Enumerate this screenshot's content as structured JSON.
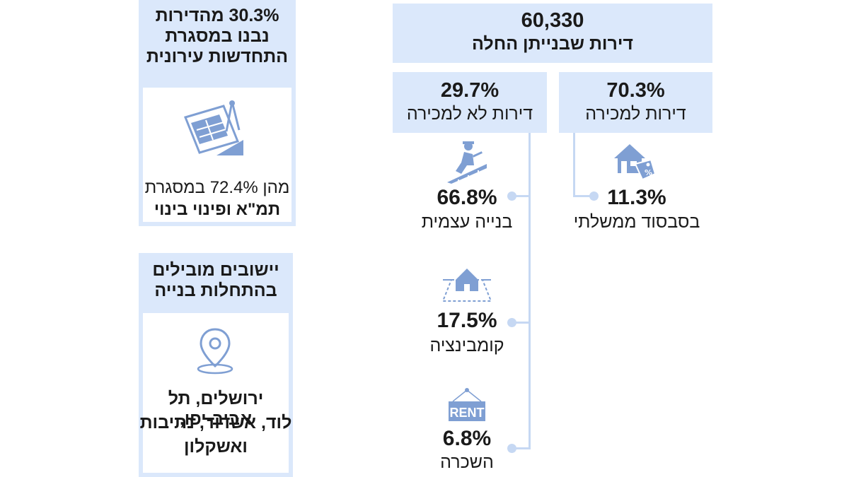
{
  "total": {
    "value": "60,330",
    "label": "דירות שבנייתן החלה"
  },
  "for_sale": {
    "pct": "70.3%",
    "label": "דירות למכירה"
  },
  "not_for_sale": {
    "pct": "29.7%",
    "label": "דירות לא למכירה"
  },
  "subsidized": {
    "pct": "11.3%",
    "label": "בסבסוד ממשלתי",
    "icon": "house-price-tag-icon"
  },
  "self_build": {
    "pct": "66.8%",
    "label": "בנייה עצמית",
    "icon": "construction-worker-icon"
  },
  "combination": {
    "pct": "17.5%",
    "label": "קומבינציה",
    "icon": "house-on-land-icon"
  },
  "rent": {
    "pct": "6.8%",
    "label": "השכרה",
    "icon_text": "RENT",
    "icon": "rent-sign-icon"
  },
  "urban_renewal": {
    "heading_line1": "30.3% מהדירות",
    "heading_line2": "נבנו במסגרת",
    "heading_line3": "התחדשות עירונית",
    "note_line1": "מהן 72.4% במסגרת",
    "note_line2": "תמ\"א ופינוי בינוי",
    "icon": "blueprint-compass-icon"
  },
  "leading_cities": {
    "heading_line1": "יישובים מובילים",
    "heading_line2": "בהתחלות בנייה",
    "cities_line1": "ירושלים, תל אביב-יפו,",
    "cities_line2": "לוד, אשדוד, נתיבות",
    "cities_line3": "ואשקלון",
    "icon": "map-pin-icon"
  },
  "colors": {
    "box": "#dbe8fb",
    "connector": "#c6d8f3",
    "icon": "#7f9fd3"
  }
}
